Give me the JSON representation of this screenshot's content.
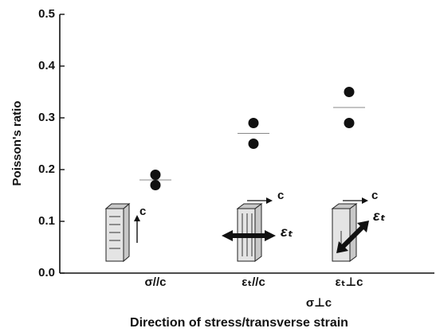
{
  "chart_data": {
    "type": "dot",
    "y_label": "Poisson's ratio",
    "x_label": "Direction of stress/transverse strain",
    "categories": [
      "σ//c",
      "εₜ//c",
      "εₜ⊥c"
    ],
    "group_label": "σ⊥c",
    "samples": [
      [
        0.19,
        0.17
      ],
      [
        0.29,
        0.25
      ],
      [
        0.35,
        0.29
      ]
    ],
    "means": [
      0.18,
      0.27,
      0.32
    ],
    "color": "#111111",
    "mean_color": "#888888",
    "annotations": [
      "c",
      "c",
      "c",
      "εₜ",
      "εₜ"
    ],
    "ylim": [
      0,
      0.5
    ],
    "yticks": [
      {
        "value": 0,
        "label": "0.0"
      },
      0.1,
      0.2,
      0.3,
      0.4,
      0.5
    ]
  }
}
